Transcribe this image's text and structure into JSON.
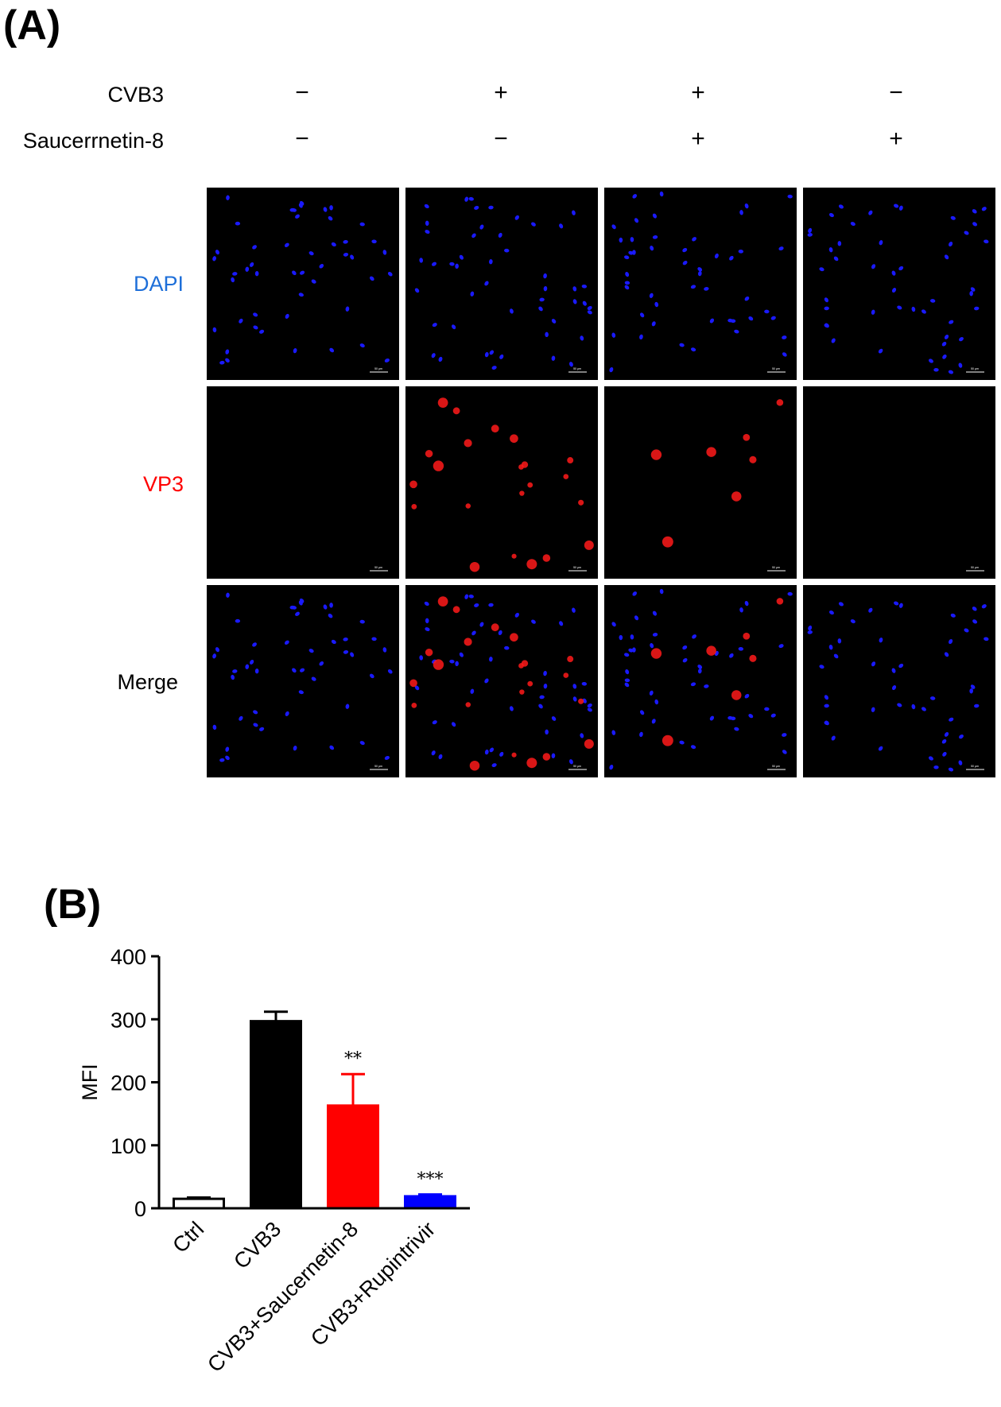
{
  "panel_a": {
    "label": "(A)",
    "conditions": [
      {
        "label": "CVB3",
        "signs": [
          "−",
          "+",
          "+",
          "−"
        ]
      },
      {
        "label": "Saucerrnetin-8",
        "signs": [
          "−",
          "−",
          "+",
          "+"
        ]
      }
    ],
    "rows": [
      {
        "label": "DAPI",
        "color": "#1e6fd9"
      },
      {
        "label": "VP3",
        "color": "#ff0000"
      },
      {
        "label": "Merge",
        "color": "#000000"
      }
    ],
    "scale_bar_label": "50 µm",
    "colors": {
      "dapi": "#1a1aff",
      "vp3": "#ff1a1a"
    }
  },
  "panel_b": {
    "label": "(B)"
  },
  "chart_data": {
    "type": "bar",
    "categories": [
      "Ctrl",
      "CVB3",
      "CVB3+Saucernetin-8",
      "CVB3+Rupintrivir"
    ],
    "values": [
      15,
      297,
      163,
      19
    ],
    "errors": [
      2,
      15,
      50,
      3
    ],
    "significance": [
      "",
      "",
      "**",
      "***"
    ],
    "bar_colors": [
      "#ffffff",
      "#000000",
      "#ff0000",
      "#0000ff"
    ],
    "ylabel": "MFI",
    "xlabel": "",
    "ylim": [
      0,
      400
    ],
    "yticks": [
      0,
      100,
      200,
      300,
      400
    ]
  }
}
